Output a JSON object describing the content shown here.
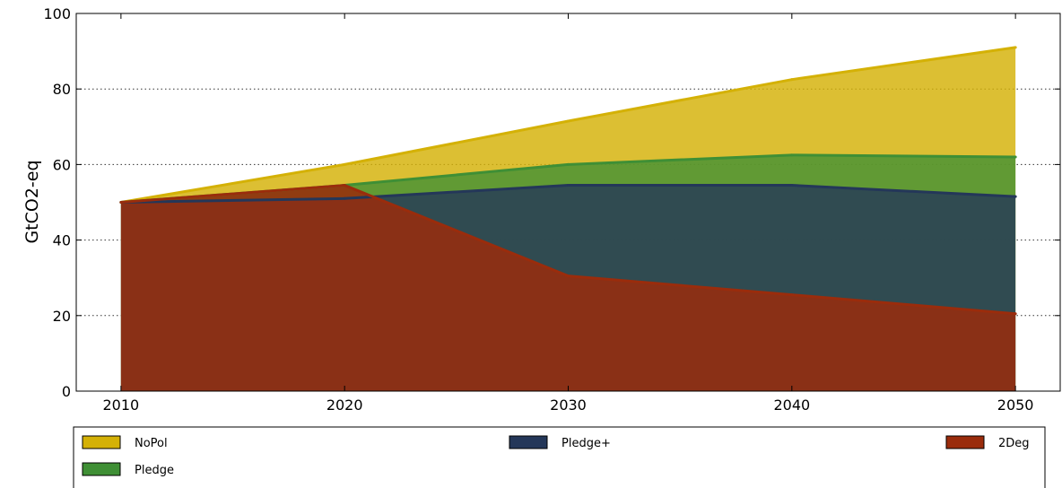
{
  "chart_data": {
    "type": "area",
    "title": "",
    "xlabel": "",
    "ylabel": "GtCO2-eq",
    "x": [
      2010,
      2020,
      2030,
      2040,
      2050
    ],
    "xlim": [
      2008,
      2052
    ],
    "ylim": [
      0,
      100
    ],
    "xticks": [
      2010,
      2020,
      2030,
      2040,
      2050
    ],
    "yticks": [
      0,
      20,
      40,
      60,
      80,
      100
    ],
    "grid": "horizontal dotted",
    "legend_placement": "below",
    "series": [
      {
        "name": "NoPol",
        "values": [
          50,
          60,
          71.5,
          82.5,
          91
        ],
        "color": "#d4b106"
      },
      {
        "name": "Pledge",
        "values": [
          50,
          54.5,
          60,
          62.5,
          62
        ],
        "color": "#3f8f35"
      },
      {
        "name": "Pledge+",
        "values": [
          50,
          51,
          54.5,
          54.5,
          51.5
        ],
        "color": "#243759"
      },
      {
        "name": "2Deg",
        "values": [
          50,
          54.5,
          30.5,
          25.5,
          20.5
        ],
        "color": "#9a2c0c"
      }
    ]
  }
}
